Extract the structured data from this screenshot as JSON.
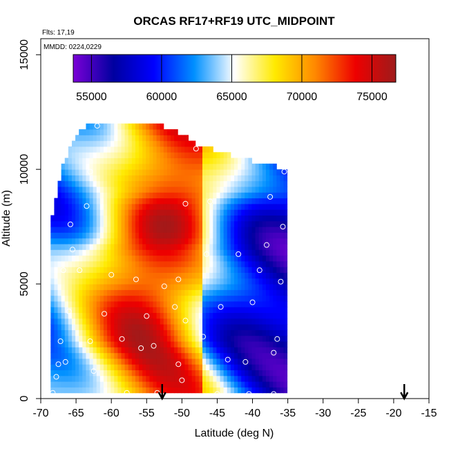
{
  "chart_data": {
    "type": "heatmap",
    "title": "ORCAS RF17+RF19 UTC_MIDPOINT",
    "annotations": [
      "Flts: 17,19",
      "MMDD: 0224,0229"
    ],
    "xlabel": "Latitude (deg N)",
    "ylabel": "Altitude (m)",
    "xlim": [
      -70,
      -15
    ],
    "ylim": [
      0,
      15700
    ],
    "xticks": [
      -70,
      -65,
      -60,
      -55,
      -50,
      -45,
      -40,
      -35,
      -30,
      -25,
      -20,
      -15
    ],
    "yticks": [
      0,
      5000,
      10000,
      15000
    ],
    "colorbar": {
      "min": 53700,
      "max": 76700,
      "ticks": [
        55000,
        60000,
        65000,
        70000,
        75000
      ],
      "colors": [
        "#7a00d6",
        "#0000a0",
        "#0000ff",
        "#0090ff",
        "#ffffff",
        "#ffea00",
        "#ff8800",
        "#ee0000",
        "#9e1b1b"
      ]
    },
    "field": {
      "lat_center": -52.5,
      "lat_spread": 10,
      "edge_value": 60500,
      "peak_value": 74000,
      "peak_shift_by_altitude": [
        {
          "alt": 0,
          "shift": 0.2
        },
        {
          "alt": 2500,
          "shift": -1.2
        },
        {
          "alt": 5000,
          "shift": -0.6
        },
        {
          "alt": 6500,
          "shift": -0.8
        },
        {
          "alt": 9000,
          "shift": 1.2
        },
        {
          "alt": 12000,
          "shift": 0.3
        }
      ],
      "top_altitude_by_lat": [
        [
          -68.5,
          7600
        ],
        [
          -67,
          10000
        ],
        [
          -65,
          11400
        ],
        [
          -63,
          12000
        ],
        [
          -58,
          12000
        ],
        [
          -55,
          12000
        ],
        [
          -52,
          11700
        ],
        [
          -50,
          11400
        ],
        [
          -48,
          11000
        ],
        [
          -46,
          10800
        ],
        [
          -42,
          10400
        ],
        [
          -38,
          10100
        ],
        [
          -35.5,
          9900
        ]
      ],
      "bottom_altitude": 250,
      "lat_range": [
        -68.6,
        -35.5
      ]
    },
    "points": [
      {
        "x": -68.3,
        "y": 250
      },
      {
        "x": -67.8,
        "y": 950
      },
      {
        "x": -67.5,
        "y": 1500
      },
      {
        "x": -66.5,
        "y": 1600
      },
      {
        "x": -67.2,
        "y": 2500
      },
      {
        "x": -66.0,
        "y": 3800
      },
      {
        "x": -66.8,
        "y": 5600
      },
      {
        "x": -64.5,
        "y": 5600
      },
      {
        "x": -65.5,
        "y": 6500
      },
      {
        "x": -65.8,
        "y": 7600
      },
      {
        "x": -63.5,
        "y": 8400
      },
      {
        "x": -63.0,
        "y": 9900
      },
      {
        "x": -62.0,
        "y": 11900
      },
      {
        "x": -63.0,
        "y": 2500
      },
      {
        "x": -62.5,
        "y": 1200
      },
      {
        "x": -61.0,
        "y": 3700
      },
      {
        "x": -60.0,
        "y": 5400
      },
      {
        "x": -58.5,
        "y": 2600
      },
      {
        "x": -57.8,
        "y": 250
      },
      {
        "x": -56.5,
        "y": 5200
      },
      {
        "x": -55.8,
        "y": 2200
      },
      {
        "x": -55.0,
        "y": 3600
      },
      {
        "x": -54.0,
        "y": 2300
      },
      {
        "x": -53.5,
        "y": 250
      },
      {
        "x": -52.5,
        "y": 4900
      },
      {
        "x": -51.0,
        "y": 4000
      },
      {
        "x": -50.5,
        "y": 5200
      },
      {
        "x": -50.0,
        "y": 800
      },
      {
        "x": -50.5,
        "y": 1500
      },
      {
        "x": -49.5,
        "y": 3400
      },
      {
        "x": -49.5,
        "y": 8500
      },
      {
        "x": -46.0,
        "y": 8600
      },
      {
        "x": -46.5,
        "y": 6300
      },
      {
        "x": -47.0,
        "y": 2700
      },
      {
        "x": -44.5,
        "y": 4000
      },
      {
        "x": -43.5,
        "y": 1700
      },
      {
        "x": -42.0,
        "y": 6300
      },
      {
        "x": -41.0,
        "y": 1600
      },
      {
        "x": -40.0,
        "y": 4200
      },
      {
        "x": -39.0,
        "y": 5600
      },
      {
        "x": -38.0,
        "y": 6700
      },
      {
        "x": -37.5,
        "y": 8800
      },
      {
        "x": -37.0,
        "y": 2000
      },
      {
        "x": -36.5,
        "y": 2600
      },
      {
        "x": -36.0,
        "y": 5100
      },
      {
        "x": -35.7,
        "y": 7500
      },
      {
        "x": -35.5,
        "y": 9900
      },
      {
        "x": -37.0,
        "y": 200
      },
      {
        "x": -40.5,
        "y": 200
      },
      {
        "x": -45.0,
        "y": 200
      },
      {
        "x": -48.0,
        "y": 10900
      }
    ],
    "arrows": [
      -52.8,
      -18.5
    ]
  }
}
